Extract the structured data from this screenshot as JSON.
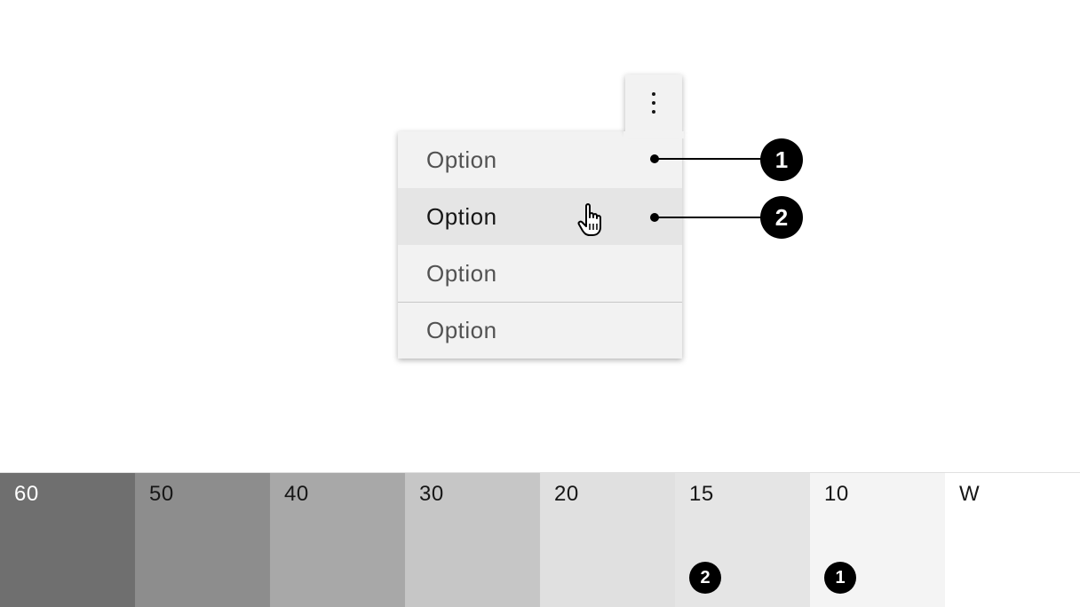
{
  "menu": {
    "items": [
      {
        "label": "Option"
      },
      {
        "label": "Option"
      },
      {
        "label": "Option"
      },
      {
        "label": "Option"
      }
    ]
  },
  "callouts": [
    {
      "number": "1"
    },
    {
      "number": "2"
    }
  ],
  "icons": {
    "trigger": "overflow-menu-vertical-icon",
    "cursor": "hand-pointer-icon"
  },
  "swatches": [
    {
      "label": "60",
      "color": "#6f6f6f",
      "text_color": "#ffffff"
    },
    {
      "label": "50",
      "color": "#8d8d8d",
      "text_color": "#161616"
    },
    {
      "label": "40",
      "color": "#a8a8a8",
      "text_color": "#161616"
    },
    {
      "label": "30",
      "color": "#c6c6c6",
      "text_color": "#161616"
    },
    {
      "label": "20",
      "color": "#e0e0e0",
      "text_color": "#161616"
    },
    {
      "label": "15",
      "color": "#e5e5e5",
      "text_color": "#161616",
      "badge": "2"
    },
    {
      "label": "10",
      "color": "#f4f4f4",
      "text_color": "#161616",
      "badge": "1"
    },
    {
      "label": "W",
      "color": "#ffffff",
      "text_color": "#161616"
    }
  ]
}
